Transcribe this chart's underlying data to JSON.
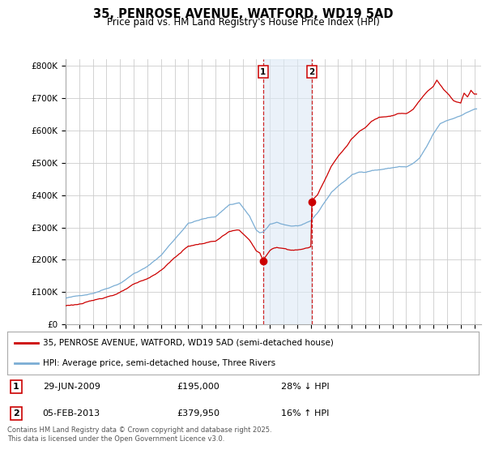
{
  "title": "35, PENROSE AVENUE, WATFORD, WD19 5AD",
  "subtitle": "Price paid vs. HM Land Registry's House Price Index (HPI)",
  "ylim": [
    0,
    820000
  ],
  "yticks": [
    0,
    100000,
    200000,
    300000,
    400000,
    500000,
    600000,
    700000,
    800000
  ],
  "ytick_labels": [
    "£0",
    "£100K",
    "£200K",
    "£300K",
    "£400K",
    "£500K",
    "£600K",
    "£700K",
    "£800K"
  ],
  "background_color": "#ffffff",
  "plot_bg_color": "#ffffff",
  "grid_color": "#cccccc",
  "red_color": "#cc0000",
  "blue_color": "#7aadd4",
  "annotation_bg": "#dce9f5",
  "sale1": {
    "date": "29-JUN-2009",
    "price": 195000,
    "label": "1",
    "pct": "28% ↓ HPI"
  },
  "sale2": {
    "date": "05-FEB-2013",
    "price": 379950,
    "label": "2",
    "pct": "16% ↑ HPI"
  },
  "legend1": "35, PENROSE AVENUE, WATFORD, WD19 5AD (semi-detached house)",
  "legend2": "HPI: Average price, semi-detached house, Three Rivers",
  "footnote": "Contains HM Land Registry data © Crown copyright and database right 2025.\nThis data is licensed under the Open Government Licence v3.0.",
  "sale1_x": 2009.5,
  "sale1_y": 195000,
  "sale2_x": 2013.08,
  "sale2_y": 379950,
  "vline1_x": 2009.5,
  "vline2_x": 2013.08,
  "xmin": 1995,
  "xmax": 2025.5
}
